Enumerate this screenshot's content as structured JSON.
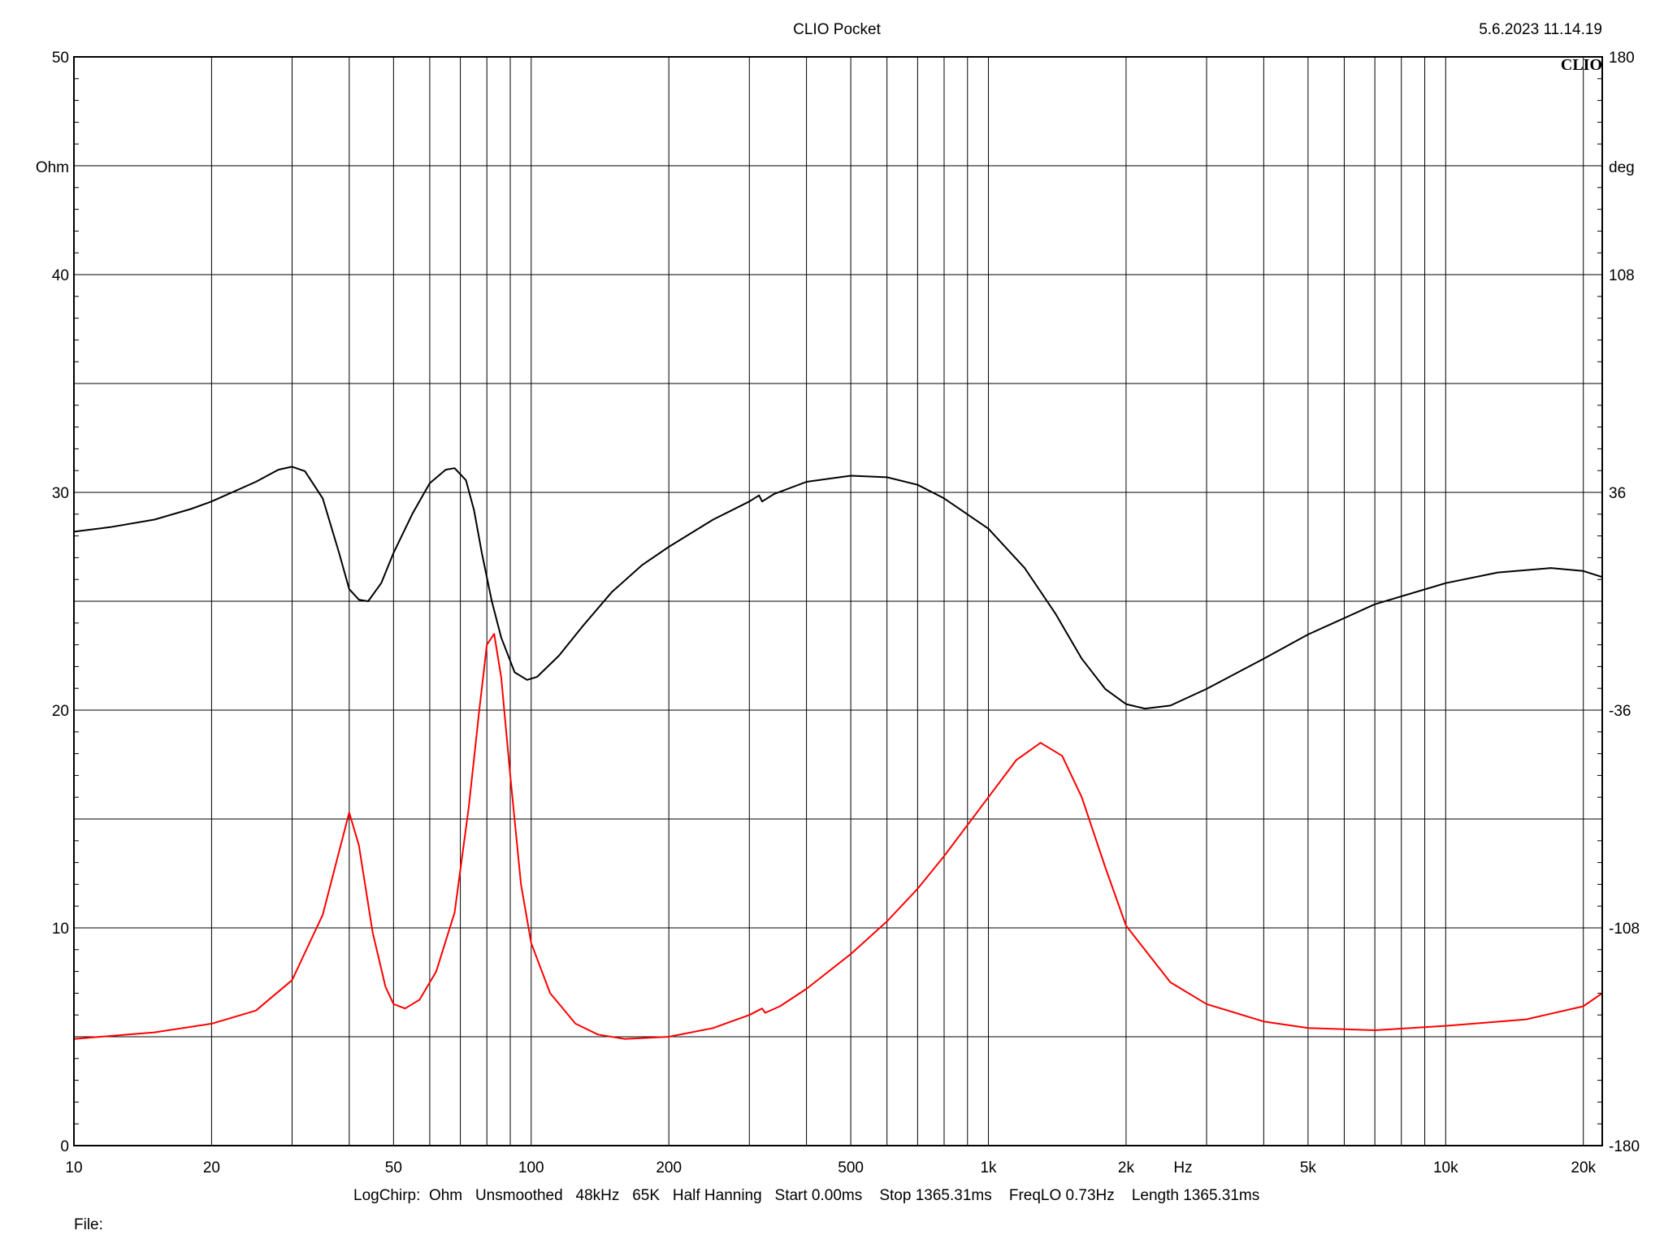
{
  "header": {
    "title": "CLIO Pocket",
    "timestamp": "5.6.2023 11.14.19",
    "logo_text": "CLIO"
  },
  "footer": {
    "settings": "LogChirp:  Ohm   Unsmoothed   48kHz   65K   Half Hanning   Start 0.00ms    Stop 1365.31ms    FreqLO 0.73Hz    Length 1365.31ms",
    "file_label": "File:"
  },
  "chart_data": {
    "type": "line",
    "title": "CLIO Pocket",
    "x_axis": {
      "scale": "log",
      "range": [
        10,
        22000
      ],
      "unit_label": "Hz",
      "tick_labels": [
        {
          "value": 10,
          "label": "10"
        },
        {
          "value": 20,
          "label": "20"
        },
        {
          "value": 50,
          "label": "50"
        },
        {
          "value": 100,
          "label": "100"
        },
        {
          "value": 200,
          "label": "200"
        },
        {
          "value": 500,
          "label": "500"
        },
        {
          "value": 1000,
          "label": "1k"
        },
        {
          "value": 2000,
          "label": "2k"
        },
        {
          "value": 5000,
          "label": "5k"
        },
        {
          "value": 10000,
          "label": "10k"
        },
        {
          "value": 20000,
          "label": "20k"
        }
      ],
      "gridlines": [
        10,
        20,
        30,
        40,
        50,
        60,
        70,
        80,
        90,
        100,
        200,
        300,
        400,
        500,
        600,
        700,
        800,
        900,
        1000,
        2000,
        3000,
        4000,
        5000,
        6000,
        7000,
        8000,
        9000,
        10000,
        20000
      ]
    },
    "y_left": {
      "label": "Ohm",
      "range": [
        0,
        50
      ],
      "tick_labels": [
        0,
        10,
        20,
        30,
        40,
        50
      ],
      "gridlines": [
        0,
        5,
        10,
        15,
        20,
        25,
        30,
        35,
        40,
        45,
        50
      ]
    },
    "y_right": {
      "label": "deg",
      "range": [
        -180,
        180
      ],
      "tick_labels": [
        -180,
        -108,
        -36,
        36,
        108,
        180
      ]
    },
    "grid": true,
    "series": [
      {
        "axis": "left",
        "color": "#ff0000",
        "points": [
          [
            10,
            4.9
          ],
          [
            15,
            5.2
          ],
          [
            20,
            5.6
          ],
          [
            25,
            6.2
          ],
          [
            30,
            7.6
          ],
          [
            35,
            10.6
          ],
          [
            38,
            13.5
          ],
          [
            40,
            15.3
          ],
          [
            42,
            13.8
          ],
          [
            45,
            9.8
          ],
          [
            48,
            7.3
          ],
          [
            50,
            6.5
          ],
          [
            53,
            6.3
          ],
          [
            57,
            6.7
          ],
          [
            62,
            8.0
          ],
          [
            68,
            10.7
          ],
          [
            73,
            15.5
          ],
          [
            77,
            20.0
          ],
          [
            80,
            23.0
          ],
          [
            83,
            23.5
          ],
          [
            86,
            21.5
          ],
          [
            90,
            17.0
          ],
          [
            95,
            12.0
          ],
          [
            100,
            9.3
          ],
          [
            110,
            7.0
          ],
          [
            125,
            5.6
          ],
          [
            140,
            5.1
          ],
          [
            160,
            4.9
          ],
          [
            200,
            5.0
          ],
          [
            250,
            5.4
          ],
          [
            300,
            6.0
          ],
          [
            320,
            6.3
          ],
          [
            325,
            6.1
          ],
          [
            350,
            6.4
          ],
          [
            400,
            7.2
          ],
          [
            500,
            8.8
          ],
          [
            600,
            10.3
          ],
          [
            700,
            11.8
          ],
          [
            800,
            13.3
          ],
          [
            1000,
            16.0
          ],
          [
            1150,
            17.7
          ],
          [
            1300,
            18.5
          ],
          [
            1450,
            17.9
          ],
          [
            1600,
            16.0
          ],
          [
            1800,
            12.8
          ],
          [
            2000,
            10.1
          ],
          [
            2500,
            7.5
          ],
          [
            3000,
            6.5
          ],
          [
            4000,
            5.7
          ],
          [
            5000,
            5.4
          ],
          [
            7000,
            5.3
          ],
          [
            10000,
            5.5
          ],
          [
            15000,
            5.8
          ],
          [
            20000,
            6.4
          ],
          [
            22000,
            7.0
          ]
        ]
      },
      {
        "axis": "right",
        "color": "#000000",
        "points": [
          [
            10,
            23
          ],
          [
            12,
            24.5
          ],
          [
            15,
            27
          ],
          [
            18,
            30.5
          ],
          [
            20,
            33
          ],
          [
            25,
            39.5
          ],
          [
            28,
            43.5
          ],
          [
            30,
            44.5
          ],
          [
            32,
            43
          ],
          [
            35,
            34
          ],
          [
            38,
            16
          ],
          [
            40,
            4
          ],
          [
            42,
            0.5
          ],
          [
            44,
            0
          ],
          [
            47,
            6
          ],
          [
            50,
            16
          ],
          [
            55,
            29
          ],
          [
            60,
            39
          ],
          [
            65,
            43.5
          ],
          [
            68,
            44
          ],
          [
            72,
            40
          ],
          [
            75,
            30
          ],
          [
            78,
            16
          ],
          [
            82,
            0
          ],
          [
            86,
            -12
          ],
          [
            92,
            -23.5
          ],
          [
            98,
            -26
          ],
          [
            103,
            -25
          ],
          [
            115,
            -18
          ],
          [
            130,
            -8
          ],
          [
            150,
            3
          ],
          [
            175,
            12
          ],
          [
            200,
            18
          ],
          [
            250,
            27
          ],
          [
            300,
            33
          ],
          [
            315,
            35
          ],
          [
            320,
            33
          ],
          [
            340,
            35.5
          ],
          [
            400,
            39.5
          ],
          [
            500,
            41.5
          ],
          [
            600,
            41
          ],
          [
            700,
            38.5
          ],
          [
            800,
            34
          ],
          [
            1000,
            24
          ],
          [
            1200,
            11
          ],
          [
            1400,
            -4
          ],
          [
            1600,
            -19
          ],
          [
            1800,
            -29
          ],
          [
            2000,
            -34
          ],
          [
            2200,
            -35.5
          ],
          [
            2500,
            -34.5
          ],
          [
            3000,
            -29
          ],
          [
            4000,
            -19
          ],
          [
            5000,
            -11
          ],
          [
            7000,
            -1
          ],
          [
            10000,
            6
          ],
          [
            13000,
            9.5
          ],
          [
            17000,
            11
          ],
          [
            20000,
            10
          ],
          [
            22000,
            8
          ]
        ]
      }
    ]
  }
}
